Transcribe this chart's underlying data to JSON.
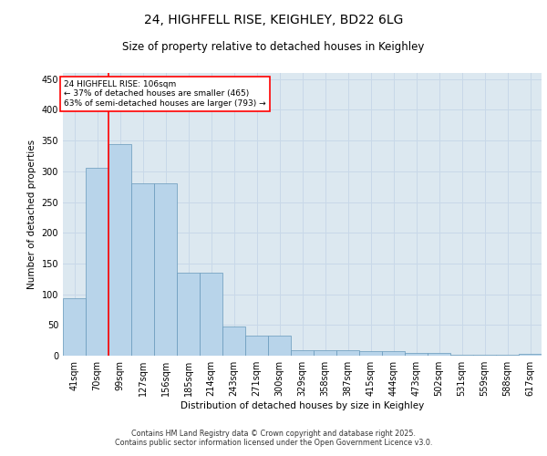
{
  "title1": "24, HIGHFELL RISE, KEIGHLEY, BD22 6LG",
  "title2": "Size of property relative to detached houses in Keighley",
  "xlabel": "Distribution of detached houses by size in Keighley",
  "ylabel": "Number of detached properties",
  "categories": [
    "41sqm",
    "70sqm",
    "99sqm",
    "127sqm",
    "156sqm",
    "185sqm",
    "214sqm",
    "243sqm",
    "271sqm",
    "300sqm",
    "329sqm",
    "358sqm",
    "387sqm",
    "415sqm",
    "444sqm",
    "473sqm",
    "502sqm",
    "531sqm",
    "559sqm",
    "588sqm",
    "617sqm"
  ],
  "bar_values": [
    93,
    305,
    344,
    280,
    280,
    135,
    135,
    47,
    32,
    32,
    9,
    9,
    9,
    8,
    8,
    4,
    4,
    2,
    2,
    2,
    3
  ],
  "ylim": [
    0,
    460
  ],
  "yticks": [
    0,
    50,
    100,
    150,
    200,
    250,
    300,
    350,
    400,
    450
  ],
  "bar_color": "#b8d4ea",
  "bar_edge_color": "#6699bb",
  "grid_color": "#c8d8e8",
  "bg_color": "#dce8f0",
  "annotation_text": "24 HIGHFELL RISE: 106sqm\n← 37% of detached houses are smaller (465)\n63% of semi-detached houses are larger (793) →",
  "footer1": "Contains HM Land Registry data © Crown copyright and database right 2025.",
  "footer2": "Contains public sector information licensed under the Open Government Licence v3.0."
}
